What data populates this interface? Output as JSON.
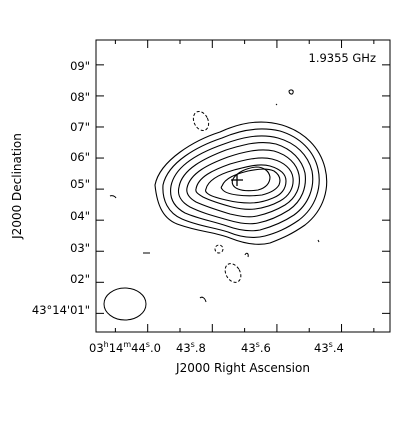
{
  "chart_data": {
    "type": "contour",
    "frequency_label": "1.9355 GHz",
    "xlabel": "J2000 Right Ascension",
    "ylabel": "J2000 Declination",
    "x_ticks": [
      {
        "h": "03",
        "m": "14",
        "s": "44",
        "frac": ".0",
        "value": 44.0
      },
      {
        "text": "43.8",
        "s": "43",
        "frac": ".8",
        "value": 43.8
      },
      {
        "text": "43.6",
        "s": "43",
        "frac": ".6",
        "value": 43.6
      },
      {
        "text": "43.4",
        "s": "43",
        "frac": ".4",
        "value": 43.4
      }
    ],
    "y_ticks": [
      {
        "text": "43°14'01\"",
        "value": 1
      },
      {
        "text": "02\"",
        "value": 2
      },
      {
        "text": "03\"",
        "value": 3
      },
      {
        "text": "04\"",
        "value": 4
      },
      {
        "text": "05\"",
        "value": 5
      },
      {
        "text": "06\"",
        "value": 6
      },
      {
        "text": "07\"",
        "value": 7
      },
      {
        "text": "08\"",
        "value": 8
      },
      {
        "text": "09\"",
        "value": 9
      }
    ],
    "xlim_seconds": [
      44.16,
      43.25
    ],
    "ylim_arcsec": [
      0.4,
      9.8
    ],
    "peak": {
      "ra_s": 43.665,
      "dec_arcsec": 5.15
    },
    "contour_levels": 9,
    "beam": {
      "ra_s": 44.025,
      "dec_arcsec": 0.95,
      "fwhm_ra_arcsec": 1.5,
      "fwhm_dec_arcsec": 1.05
    }
  }
}
